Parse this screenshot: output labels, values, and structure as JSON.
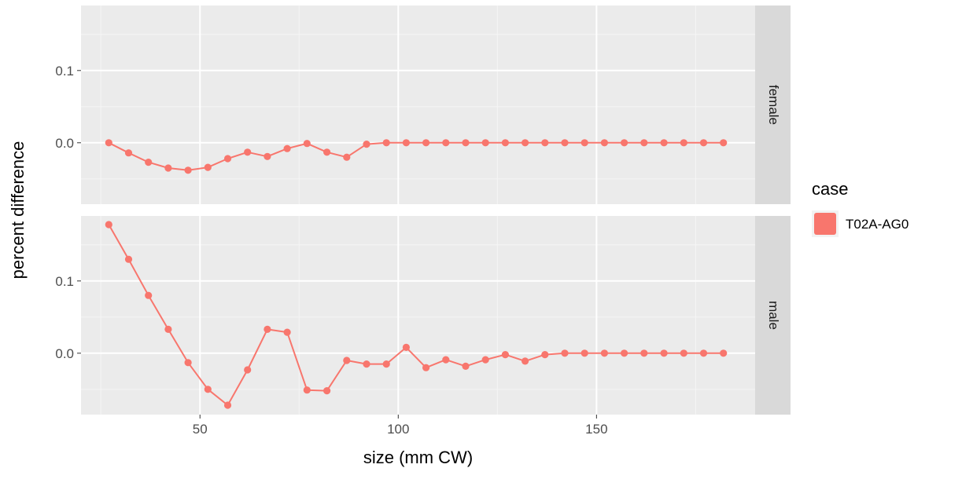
{
  "chart_data": {
    "type": "line",
    "xlabel": "size (mm CW)",
    "ylabel": "percent difference",
    "x_ticks": [
      50,
      100,
      150
    ],
    "y_ticks": [
      0.0,
      0.1
    ],
    "y_tick_labels": [
      "0.0",
      "0.1"
    ],
    "xlim": [
      20,
      190
    ],
    "grid": true,
    "legend": {
      "title": "case",
      "position": "right",
      "entries": [
        {
          "label": "T02A-AG0",
          "color": "#f8766d"
        }
      ]
    },
    "panels": [
      {
        "label": "female",
        "ylim": [
          -0.085,
          0.19
        ],
        "series": [
          {
            "color": "#f8766d",
            "x": [
              27,
              32,
              37,
              42,
              47,
              52,
              57,
              62,
              67,
              72,
              77,
              82,
              87,
              92,
              97,
              102,
              107,
              112,
              117,
              122,
              127,
              132,
              137,
              142,
              147,
              152,
              157,
              162,
              167,
              172,
              177,
              182
            ],
            "y": [
              0.0,
              -0.014,
              -0.027,
              -0.035,
              -0.038,
              -0.034,
              -0.022,
              -0.013,
              -0.019,
              -0.008,
              -0.001,
              -0.013,
              -0.02,
              -0.002,
              0.0,
              0.0,
              0.0,
              0.0,
              0.0,
              0.0,
              0.0,
              0.0,
              0.0,
              0.0,
              0.0,
              0.0,
              0.0,
              0.0,
              0.0,
              0.0,
              0.0,
              0.0
            ]
          }
        ]
      },
      {
        "label": "male",
        "ylim": [
          -0.085,
          0.19
        ],
        "series": [
          {
            "color": "#f8766d",
            "x": [
              27,
              32,
              37,
              42,
              47,
              52,
              57,
              62,
              67,
              72,
              77,
              82,
              87,
              92,
              97,
              102,
              107,
              112,
              117,
              122,
              127,
              132,
              137,
              142,
              147,
              152,
              157,
              162,
              167,
              172,
              177,
              182
            ],
            "y": [
              0.178,
              0.13,
              0.08,
              0.033,
              -0.013,
              -0.05,
              -0.072,
              -0.023,
              0.033,
              0.029,
              -0.051,
              -0.052,
              -0.01,
              -0.015,
              -0.015,
              0.008,
              -0.02,
              -0.009,
              -0.018,
              -0.009,
              -0.002,
              -0.011,
              -0.002,
              0.0,
              0.0,
              0.0,
              0.0,
              0.0,
              0.0,
              0.0,
              0.0,
              0.0
            ]
          }
        ]
      }
    ]
  }
}
